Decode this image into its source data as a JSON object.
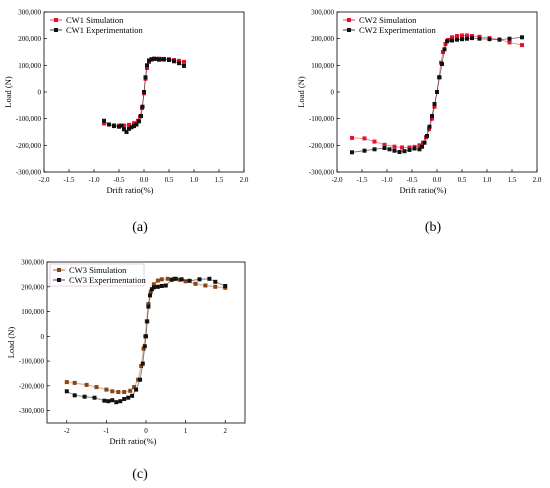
{
  "panels": [
    {
      "caption": "(a)"
    },
    {
      "caption": "(b)"
    },
    {
      "caption": "(c)"
    }
  ],
  "chart_data": [
    {
      "type": "scatter",
      "title": "",
      "xlabel": "Drift ratio(%)",
      "ylabel": "Load (N)",
      "xlim": [
        -2.0,
        2.0
      ],
      "ylim": [
        -300000,
        300000
      ],
      "xticks": [
        -2.0,
        -1.5,
        -1.0,
        -0.5,
        0.0,
        0.5,
        1.0,
        1.5,
        2.0
      ],
      "xtick_labels": [
        "-2.0",
        "-1.5",
        "-1.0",
        "-0.5",
        "0.0",
        "0.5",
        "1.0",
        "1.5",
        "2.0"
      ],
      "yticks": [
        -300000,
        -200000,
        -100000,
        0,
        100000,
        200000,
        300000
      ],
      "ytick_labels": [
        "-300,000",
        "-200,000",
        "-100,000",
        "0",
        "100,000",
        "200,000",
        "300,000"
      ],
      "grid": false,
      "legend_position": "top-left",
      "series": [
        {
          "name": "CW1 Simulation",
          "color": "#e8112d",
          "marker": "square",
          "x": [
            -0.8,
            -0.7,
            -0.6,
            -0.5,
            -0.4,
            -0.3,
            -0.2,
            -0.12,
            -0.08,
            -0.04,
            0.0,
            0.03,
            0.06,
            0.1,
            0.15,
            0.2,
            0.3,
            0.4,
            0.5,
            0.6,
            0.7,
            0.8
          ],
          "y": [
            -118000,
            -122000,
            -125000,
            -126000,
            -126000,
            -123000,
            -117000,
            -108000,
            -92000,
            -60000,
            -5000,
            50000,
            90000,
            113000,
            121000,
            124000,
            125000,
            124000,
            123000,
            120000,
            117000,
            113000
          ]
        },
        {
          "name": "CW1 Experimentation",
          "color": "#111111",
          "marker": "square",
          "x": [
            -0.8,
            -0.7,
            -0.6,
            -0.5,
            -0.45,
            -0.4,
            -0.35,
            -0.3,
            -0.25,
            -0.2,
            -0.15,
            -0.1,
            -0.06,
            -0.03,
            0.0,
            0.03,
            0.06,
            0.1,
            0.15,
            0.2,
            0.25,
            0.3,
            0.35,
            0.4,
            0.5,
            0.6,
            0.7,
            0.8
          ],
          "y": [
            -108000,
            -122000,
            -128000,
            -130000,
            -126000,
            -140000,
            -150000,
            -138000,
            -132000,
            -128000,
            -122000,
            -110000,
            -90000,
            -55000,
            0,
            55000,
            100000,
            118000,
            123000,
            125000,
            124000,
            121000,
            123000,
            122000,
            120000,
            115000,
            108000,
            98000
          ]
        }
      ]
    },
    {
      "type": "scatter",
      "title": "",
      "xlabel": "Drift ratio(%)",
      "ylabel": "Load (N)",
      "xlim": [
        -2.0,
        2.0
      ],
      "ylim": [
        -300000,
        300000
      ],
      "xticks": [
        -2.0,
        -1.5,
        -1.0,
        -0.5,
        0.0,
        0.5,
        1.0,
        1.5,
        2.0
      ],
      "xtick_labels": [
        "-2.0",
        "-1.5",
        "-1.0",
        "-0.5",
        "0.0",
        "0.5",
        "1.0",
        "1.5",
        "2.0"
      ],
      "yticks": [
        -300000,
        -200000,
        -100000,
        0,
        100000,
        200000,
        300000
      ],
      "ytick_labels": [
        "-300,000",
        "-200,000",
        "-100,000",
        "0",
        "100,000",
        "200,000",
        "300,000"
      ],
      "grid": false,
      "legend_position": "top-left",
      "series": [
        {
          "name": "CW2 Simulation",
          "color": "#e8112d",
          "marker": "square",
          "x": [
            -1.7,
            -1.45,
            -1.25,
            -1.05,
            -0.85,
            -0.7,
            -0.55,
            -0.45,
            -0.35,
            -0.28,
            -0.22,
            -0.16,
            -0.1,
            -0.05,
            0.0,
            0.04,
            0.08,
            0.12,
            0.17,
            0.22,
            0.3,
            0.4,
            0.5,
            0.6,
            0.7,
            0.85,
            1.05,
            1.25,
            1.45,
            1.7
          ],
          "y": [
            -172000,
            -174000,
            -186000,
            -198000,
            -205000,
            -208000,
            -208000,
            -206000,
            -200000,
            -190000,
            -170000,
            -140000,
            -100000,
            -55000,
            0,
            55000,
            110000,
            150000,
            180000,
            195000,
            205000,
            210000,
            212000,
            212000,
            210000,
            207000,
            202000,
            197000,
            186000,
            176000
          ]
        },
        {
          "name": "CW2 Experimentation",
          "color": "#111111",
          "marker": "square",
          "x": [
            -1.7,
            -1.45,
            -1.25,
            -1.05,
            -0.95,
            -0.85,
            -0.75,
            -0.65,
            -0.55,
            -0.45,
            -0.35,
            -0.3,
            -0.25,
            -0.2,
            -0.15,
            -0.1,
            -0.05,
            0.0,
            0.05,
            0.1,
            0.15,
            0.2,
            0.3,
            0.4,
            0.5,
            0.6,
            0.7,
            0.85,
            1.05,
            1.25,
            1.45,
            1.7
          ],
          "y": [
            -226000,
            -220000,
            -215000,
            -210000,
            -215000,
            -220000,
            -225000,
            -222000,
            -217000,
            -212000,
            -215000,
            -205000,
            -190000,
            -165000,
            -130000,
            -90000,
            -45000,
            0,
            55000,
            105000,
            160000,
            190000,
            193000,
            196000,
            198000,
            200000,
            202000,
            200000,
            198000,
            196000,
            200000,
            205000
          ]
        }
      ]
    },
    {
      "type": "line",
      "title": "",
      "xlabel": "Drift ratio(%)",
      "ylabel": "Load (N)",
      "xlim": [
        -2.5,
        2.5
      ],
      "ylim": [
        -350000,
        300000
      ],
      "xticks": [
        -2,
        -1,
        0,
        1,
        2
      ],
      "xtick_labels": [
        "-2",
        "-1",
        "0",
        "1",
        "2"
      ],
      "yticks": [
        -300000,
        -200000,
        -100000,
        0,
        100000,
        200000,
        300000
      ],
      "ytick_labels": [
        "-300,000",
        "-200,000",
        "-100,000",
        "0",
        "100,000",
        "200,000",
        "300,000"
      ],
      "grid": false,
      "legend_position": "top-left",
      "series": [
        {
          "name": "CW3 Simulation",
          "color": "#8b4513",
          "marker": "square",
          "x": [
            -2.0,
            -1.8,
            -1.5,
            -1.25,
            -1.0,
            -0.85,
            -0.7,
            -0.55,
            -0.4,
            -0.3,
            -0.2,
            -0.12,
            -0.06,
            -0.02,
            0.02,
            0.06,
            0.12,
            0.2,
            0.3,
            0.4,
            0.55,
            0.7,
            0.85,
            1.0,
            1.25,
            1.5,
            1.75,
            2.0
          ],
          "y": [
            -185000,
            -188000,
            -196000,
            -205000,
            -215000,
            -222000,
            -225000,
            -225000,
            -220000,
            -205000,
            -175000,
            -120000,
            -50000,
            0,
            60000,
            130000,
            180000,
            210000,
            225000,
            230000,
            232000,
            232000,
            228000,
            222000,
            212000,
            205000,
            200000,
            196000
          ]
        },
        {
          "name": "CW3 Experimentation",
          "color": "#111111",
          "marker": "square",
          "x": [
            -2.0,
            -1.8,
            -1.55,
            -1.3,
            -1.05,
            -0.95,
            -0.85,
            -0.75,
            -0.65,
            -0.55,
            -0.45,
            -0.35,
            -0.25,
            -0.15,
            -0.08,
            -0.03,
            0.0,
            0.03,
            0.06,
            0.1,
            0.15,
            0.2,
            0.3,
            0.4,
            0.5,
            0.65,
            0.75,
            0.9,
            1.1,
            1.35,
            1.6,
            1.75,
            2.0
          ],
          "y": [
            -222000,
            -238000,
            -244000,
            -248000,
            -260000,
            -262000,
            -258000,
            -266000,
            -262000,
            -253000,
            -248000,
            -240000,
            -215000,
            -175000,
            -110000,
            -40000,
            0,
            60000,
            120000,
            165000,
            190000,
            198000,
            200000,
            203000,
            205000,
            228000,
            232000,
            230000,
            224000,
            230000,
            232000,
            220000,
            203000
          ]
        }
      ]
    }
  ]
}
